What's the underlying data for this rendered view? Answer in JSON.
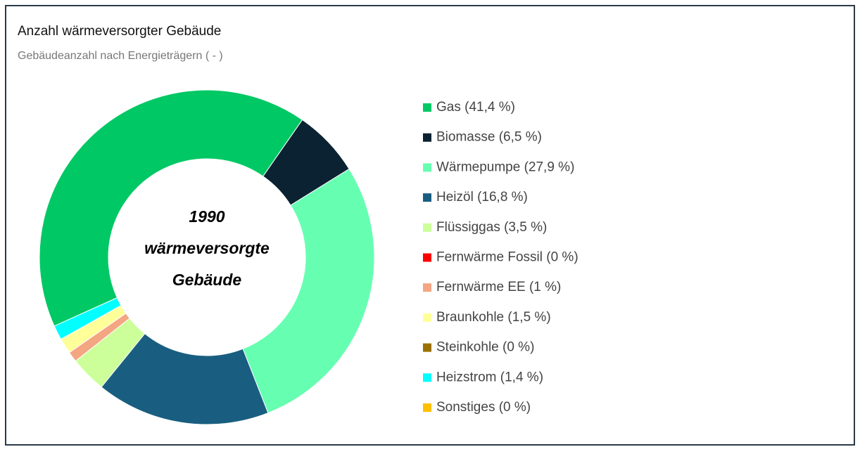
{
  "chart_data": {
    "type": "donut",
    "title": "Anzahl wärmeversorgter Gebäude",
    "subtitle": "Gebäudeanzahl nach Energieträgern ( - )",
    "center_text": [
      "1990",
      "wärmeversorgte",
      "Gebäude"
    ],
    "categories": [
      "Gas (41,4 %)",
      "Biomasse (6,5 %)",
      "Wärmepumpe (27,9 %)",
      "Heizöl (16,8 %)",
      "Flüssiggas (3,5 %)",
      "Fernwärme Fossil (0 %)",
      "Fernwärme EE (1 %)",
      "Braunkohle (1,5 %)",
      "Steinkohle (0 %)",
      "Heizstrom (1,4 %)",
      "Sonstiges (0 %)"
    ],
    "values": [
      41.4,
      6.5,
      27.9,
      16.8,
      3.5,
      0,
      1,
      1.5,
      0,
      1.4,
      0
    ],
    "colors": [
      "#00c864",
      "#0b2232",
      "#66ffb2",
      "#195e80",
      "#ccff99",
      "#ff0000",
      "#f4a582",
      "#ffff99",
      "#9a7000",
      "#00ffff",
      "#ffc000"
    ]
  }
}
